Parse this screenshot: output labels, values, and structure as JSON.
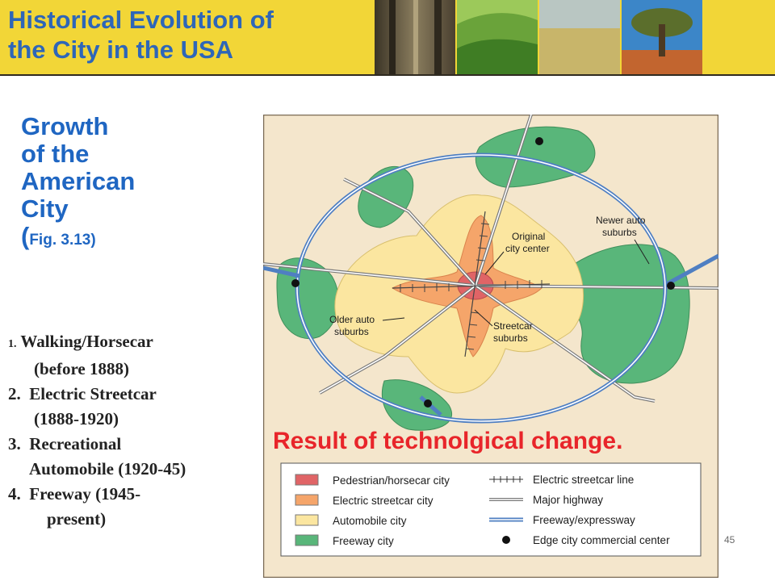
{
  "header": {
    "title_line1": "Historical Evolution of",
    "title_line2": "the City in the USA"
  },
  "subtitle": {
    "lines": [
      "Growth",
      "of the",
      "American",
      "City"
    ],
    "paren_open": "(",
    "fig_ref": "Fig. 3.13)"
  },
  "eras": [
    {
      "num": "1.",
      "label": "Walking/Horsecar",
      "cont": "(before 1888)"
    },
    {
      "num": "2.",
      "label": "Electric Streetcar",
      "cont": "(1888-1920)"
    },
    {
      "num": "3.",
      "label": "Recreational",
      "cont": "Automobile (1920-45)"
    },
    {
      "num": "4.",
      "label": "Freeway (1945-",
      "cont": "present)"
    }
  ],
  "map": {
    "labels": {
      "newer": [
        "Newer auto",
        "suburbs"
      ],
      "original": [
        "Original",
        "city center"
      ],
      "older": [
        "Older auto",
        "suburbs"
      ],
      "streetcar": [
        "Streetcar",
        "suburbs"
      ]
    },
    "legend": [
      {
        "label": "Pedestrian/horsecar city",
        "color": "#e06466"
      },
      {
        "label": "Electric streetcar city",
        "color": "#f5a56a"
      },
      {
        "label": "Automobile city",
        "color": "#fbe6a0"
      },
      {
        "label": "Freeway city",
        "color": "#59b67a"
      }
    ],
    "legend_symbols": [
      {
        "label": "Electric streetcar line",
        "symbol": "track-line"
      },
      {
        "label": "Major highway",
        "symbol": "double-line"
      },
      {
        "label": "Freeway/expressway",
        "symbol": "blue-double-line"
      },
      {
        "label": "Edge city commercial center",
        "symbol": "black-dot"
      }
    ],
    "background_color": "#f4e6cc"
  },
  "annotation": "Result of technolgical change.",
  "page_number": "45"
}
